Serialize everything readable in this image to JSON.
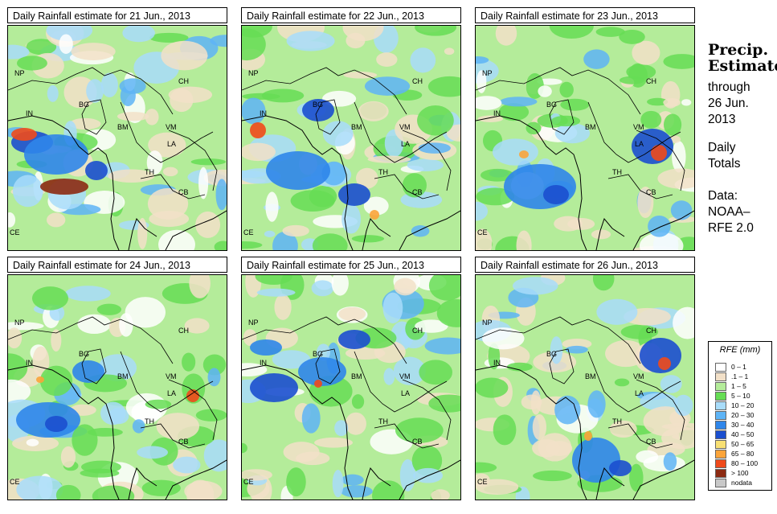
{
  "panels": [
    {
      "title": "Daily Rainfall estimate for  21 Jun., 2013"
    },
    {
      "title": "Daily Rainfall estimate for  22 Jun., 2013"
    },
    {
      "title": "Daily Rainfall estimate for  23 Jun., 2013"
    },
    {
      "title": "Daily Rainfall estimate for  24 Jun., 2013"
    },
    {
      "title": "Daily Rainfall estimate for  25 Jun., 2013"
    },
    {
      "title": "Daily Rainfall estimate for  26 Jun., 2013"
    }
  ],
  "map_labels": [
    "NP",
    "CH",
    "IN",
    "BG",
    "BM",
    "VM",
    "LA",
    "TH",
    "CB",
    "CE"
  ],
  "sidebar": {
    "title_line1": "Precip.",
    "title_line2": "Estimate",
    "through": "through",
    "date_line1": "26 Jun.",
    "date_line2": "2013",
    "totals_line1": "Daily",
    "totals_line2": "Totals",
    "data_line1": "Data:",
    "data_line2": "NOAA–",
    "data_line3": "RFE 2.0"
  },
  "legend": {
    "title": "RFE (mm)",
    "items": [
      {
        "label": "0 – 1",
        "color": "#ffffff"
      },
      {
        "label": ".1 – 1",
        "color": "#f2e0c8"
      },
      {
        "label": "1 – 5",
        "color": "#b4ec9a"
      },
      {
        "label": "5 – 10",
        "color": "#66dd55"
      },
      {
        "label": "10 – 20",
        "color": "#a8dcfa"
      },
      {
        "label": "20 – 30",
        "color": "#5eb4f6"
      },
      {
        "label": "30 – 40",
        "color": "#2f86ea"
      },
      {
        "label": "40 – 50",
        "color": "#1b4fcf"
      },
      {
        "label": "50 – 65",
        "color": "#f8e074"
      },
      {
        "label": "65 – 80",
        "color": "#fba43a"
      },
      {
        "label": "80 – 100",
        "color": "#ef4a1b"
      },
      {
        "label": "> 100",
        "color": "#8c2a12"
      },
      {
        "label": "nodata",
        "color": "#c8c8c8"
      }
    ]
  },
  "colors": {
    "trace": "#f2e0c8",
    "light_green": "#b4ec9a",
    "green": "#66dd55",
    "light_blue": "#a8dcfa",
    "blue": "#5eb4f6",
    "mid_blue": "#2f86ea",
    "dark_blue": "#1b4fcf",
    "orange": "#fba43a",
    "red": "#ef4a1b",
    "dark_red": "#8c2a12"
  }
}
